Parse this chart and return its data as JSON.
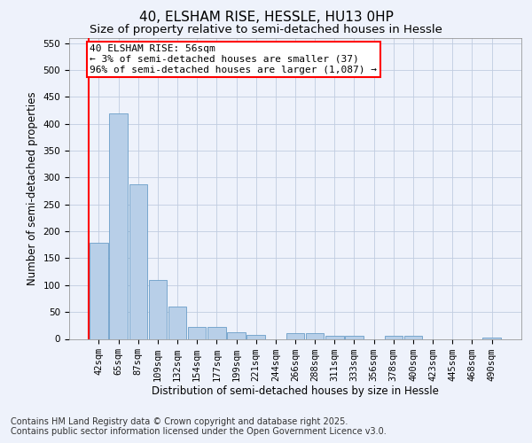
{
  "title": "40, ELSHAM RISE, HESSLE, HU13 0HP",
  "subtitle": "Size of property relative to semi-detached houses in Hessle",
  "xlabel": "Distribution of semi-detached houses by size in Hessle",
  "ylabel": "Number of semi-detached properties",
  "categories": [
    "42sqm",
    "65sqm",
    "87sqm",
    "109sqm",
    "132sqm",
    "154sqm",
    "177sqm",
    "199sqm",
    "221sqm",
    "244sqm",
    "266sqm",
    "288sqm",
    "311sqm",
    "333sqm",
    "356sqm",
    "378sqm",
    "400sqm",
    "423sqm",
    "445sqm",
    "468sqm",
    "490sqm"
  ],
  "values": [
    178,
    420,
    287,
    109,
    60,
    23,
    23,
    12,
    8,
    0,
    10,
    11,
    5,
    6,
    0,
    5,
    5,
    0,
    0,
    0,
    3
  ],
  "bar_color": "#b8cfe8",
  "bar_edge_color": "#6a9ec8",
  "vline_color": "red",
  "vline_position": -0.5,
  "annotation_text": "40 ELSHAM RISE: 56sqm\n← 3% of semi-detached houses are smaller (37)\n96% of semi-detached houses are larger (1,087) →",
  "annotation_box_edge_color": "red",
  "annotation_box_face_color": "white",
  "ylim": [
    0,
    560
  ],
  "yticks": [
    0,
    50,
    100,
    150,
    200,
    250,
    300,
    350,
    400,
    450,
    500,
    550
  ],
  "footer_line1": "Contains HM Land Registry data © Crown copyright and database right 2025.",
  "footer_line2": "Contains public sector information licensed under the Open Government Licence v3.0.",
  "background_color": "#eef2fb",
  "grid_color": "#c0cce0",
  "title_fontsize": 11,
  "subtitle_fontsize": 9.5,
  "axis_label_fontsize": 8.5,
  "tick_fontsize": 7.5,
  "annotation_fontsize": 8,
  "footer_fontsize": 7
}
